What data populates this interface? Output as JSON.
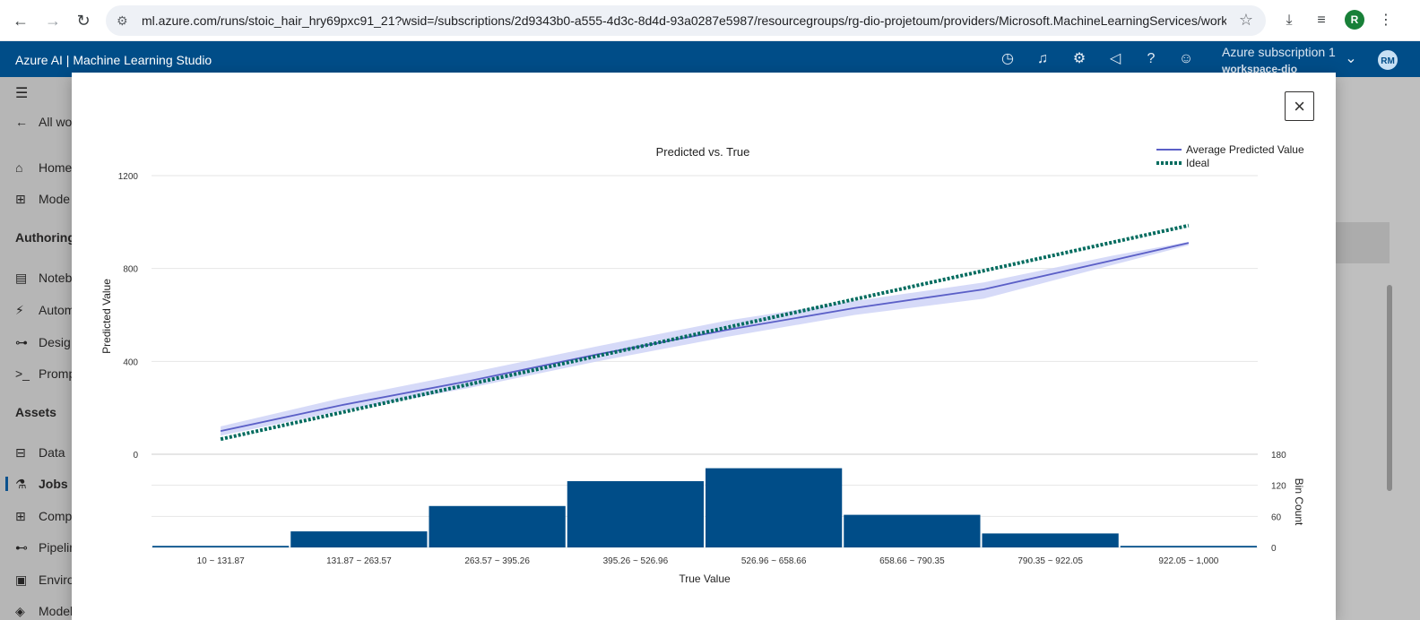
{
  "browser": {
    "url": "ml.azure.com/runs/stoic_hair_hry69pxc91_21?wsid=/subscriptions/2d9343b0-a555-4d3c-8d4d-93a0287e5987/resourcegroups/rg-dio-projetoum/providers/Microsoft.MachineLearningServices/work...",
    "profile_initial": "R",
    "icons": [
      "back-icon",
      "forward-icon",
      "reload-icon",
      "site-info-icon",
      "bookmark-star-icon",
      "download-icon",
      "media-icon",
      "menu-icon"
    ]
  },
  "app": {
    "title": "Azure AI | Machine Learning Studio",
    "subscription": "Azure subscription 1",
    "workspace": "workspace-dio",
    "avatar_initials": "RM",
    "header_icons": [
      "history-icon",
      "bell-icon",
      "gear-icon",
      "megaphone-icon",
      "help-icon",
      "smiley-icon",
      "chevron-down-icon"
    ],
    "brand_color": "#004d88"
  },
  "sidebar": {
    "back_label": "All wo",
    "items_top": [
      {
        "label": "Home",
        "icon": "home-icon"
      },
      {
        "label": "Mode",
        "icon": "model-catalog-icon"
      }
    ],
    "authoring_head": "Authoring",
    "items_authoring": [
      {
        "label": "Noteb",
        "icon": "notebook-icon"
      },
      {
        "label": "Autom",
        "icon": "automl-icon"
      },
      {
        "label": "Desig",
        "icon": "designer-icon"
      },
      {
        "label": "Promp",
        "icon": "prompt-icon"
      }
    ],
    "assets_head": "Assets",
    "items_assets": [
      {
        "label": "Data",
        "icon": "data-icon"
      },
      {
        "label": "Jobs",
        "icon": "flask-icon",
        "active": true
      },
      {
        "label": "Comp",
        "icon": "components-icon"
      },
      {
        "label": "Pipelin",
        "icon": "pipeline-icon"
      },
      {
        "label": "Enviro",
        "icon": "environment-icon"
      },
      {
        "label": "Models",
        "icon": "models-icon"
      }
    ]
  },
  "dialog": {
    "close_label": "×"
  },
  "chart_data": [
    {
      "type": "line",
      "title": "Predicted vs. True",
      "ylabel": "Predicted Value",
      "ylim": [
        0,
        1200
      ],
      "yticks": [
        0,
        400,
        800,
        1200
      ],
      "grid": true,
      "legend_placement": "top-right",
      "series": [
        {
          "name": "Average Predicted Value",
          "color": "#5b5fc7",
          "band_color": "#cfd3f7",
          "x": [
            10,
            131.87,
            263.57,
            395.26,
            526.96,
            658.66,
            790.35,
            922.05,
            1000
          ],
          "values": [
            100,
            210,
            315,
            430,
            535,
            630,
            710,
            835,
            910
          ],
          "upper": [
            120,
            240,
            350,
            465,
            575,
            660,
            740,
            855,
            915
          ],
          "lower": [
            80,
            185,
            285,
            400,
            505,
            600,
            670,
            815,
            900
          ]
        },
        {
          "name": "Ideal",
          "color": "#006b5e",
          "style": "dotted",
          "x": [
            10,
            1000
          ],
          "values": [
            65,
            985
          ]
        }
      ]
    },
    {
      "type": "bar",
      "xlabel": "True Value",
      "ylabel": "Bin Count",
      "ylim": [
        0,
        180
      ],
      "yticks": [
        0,
        60,
        120,
        180
      ],
      "color": "#004d88",
      "categories": [
        "10 ~ 131.87",
        "131.87 ~ 263.57",
        "263.57 ~ 395.26",
        "395.26 ~ 526.96",
        "526.96 ~ 658.66",
        "658.66 ~ 790.35",
        "790.35 ~ 922.05",
        "922.05 ~ 1,000"
      ],
      "values": [
        3,
        31,
        80,
        128,
        153,
        63,
        27,
        3
      ]
    }
  ]
}
